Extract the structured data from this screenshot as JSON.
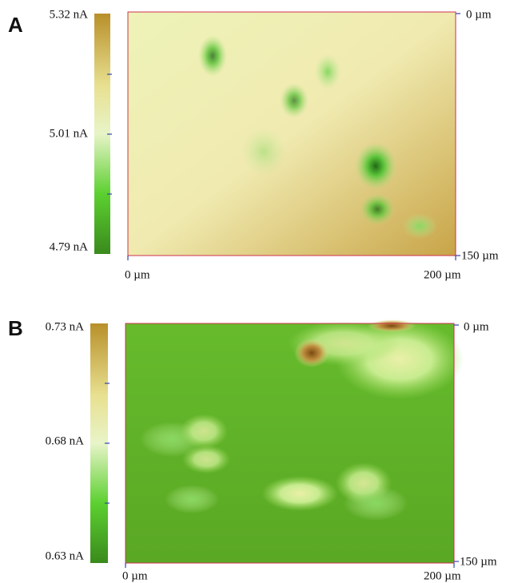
{
  "panels": [
    {
      "label": "A",
      "colorbar_labels": [
        "5.32 nA",
        "5.01 nA",
        "4.79 nA"
      ],
      "y_labels": [
        "0 µm",
        "150 µm"
      ],
      "x_labels": [
        "0 µm",
        "200 µm"
      ]
    },
    {
      "label": "B",
      "colorbar_labels": [
        "0.73 nA",
        "0.68 nA",
        "0.63 nA"
      ],
      "y_labels": [
        "0 µm",
        "150 µm"
      ],
      "x_labels": [
        "0 µm",
        "200 µm"
      ]
    }
  ]
}
